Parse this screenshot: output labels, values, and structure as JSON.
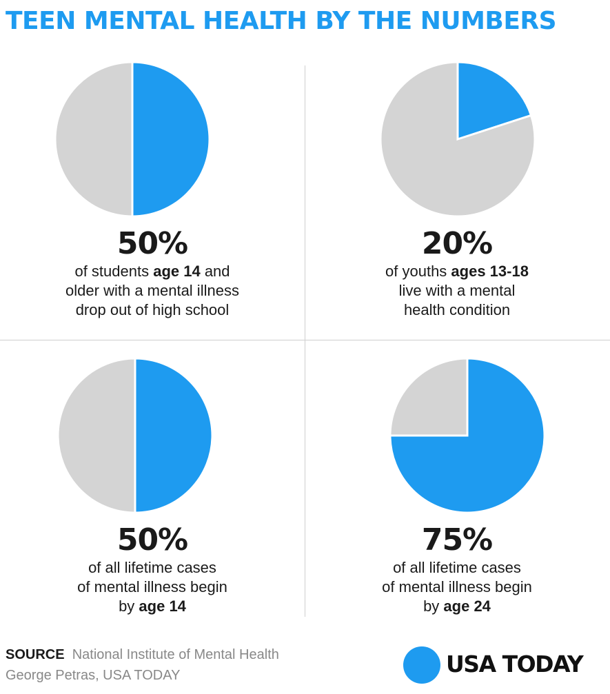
{
  "title": "TEEN MENTAL HEALTH BY THE NUMBERS",
  "colors": {
    "accent": "#1e9bf0",
    "neutral": "#d4d4d4"
  },
  "chart_data": [
    {
      "type": "pie",
      "values": [
        50,
        50
      ],
      "stat": "50%",
      "desc": [
        [
          {
            "t": "of students "
          },
          {
            "t": "age 14",
            "b": true
          },
          {
            "t": " and"
          }
        ],
        [
          {
            "t": "older with a mental illness"
          }
        ],
        [
          {
            "t": "drop out of high school"
          }
        ]
      ]
    },
    {
      "type": "pie",
      "values": [
        20,
        80
      ],
      "stat": "20%",
      "desc": [
        [
          {
            "t": "of youths "
          },
          {
            "t": "ages 13-18",
            "b": true
          }
        ],
        [
          {
            "t": "live with a mental"
          }
        ],
        [
          {
            "t": "health condition"
          }
        ]
      ]
    },
    {
      "type": "pie",
      "values": [
        50,
        50
      ],
      "stat": "50%",
      "desc": [
        [
          {
            "t": "of all lifetime cases"
          }
        ],
        [
          {
            "t": "of mental illness begin"
          }
        ],
        [
          {
            "t": "by "
          },
          {
            "t": "age 14",
            "b": true
          }
        ]
      ]
    },
    {
      "type": "pie",
      "values": [
        75,
        25
      ],
      "stat": "75%",
      "desc": [
        [
          {
            "t": "of all lifetime cases"
          }
        ],
        [
          {
            "t": "of mental illness begin"
          }
        ],
        [
          {
            "t": "by "
          },
          {
            "t": "age 24",
            "b": true
          }
        ]
      ]
    }
  ],
  "source": {
    "label": "SOURCE",
    "text": "National Institute of Mental Health",
    "credit": "George Petras, USA TODAY"
  },
  "logo": {
    "text": "USA TODAY"
  }
}
